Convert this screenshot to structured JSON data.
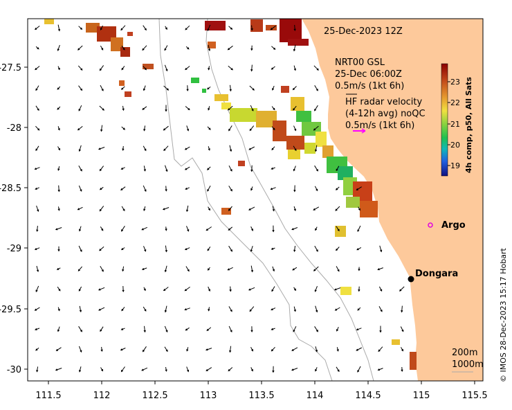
{
  "title_date": "25-Dec-2023 12Z",
  "legend_nrt": {
    "line1": "NRT00 GSL",
    "line2": "25-Dec 06:00Z",
    "line3": "0.5m/s (1kt 6h)"
  },
  "legend_hf": {
    "line1": "HF radar velocity",
    "line2": "(4-12h avg) noQC",
    "line3": "0.5m/s (1kt 6h)"
  },
  "colorbar": {
    "title": "4h comp, p50, All Sats",
    "ticks": [
      "23",
      "22",
      "21",
      "20",
      "19"
    ],
    "colors": [
      "#8b0000",
      "#c24a1a",
      "#e69a2e",
      "#f0e040",
      "#7fd040",
      "#20c050",
      "#10b8b8",
      "#2060e0",
      "#101080"
    ]
  },
  "x_ticks": [
    "111.5",
    "112",
    "112.5",
    "113",
    "113.5",
    "114",
    "114.5",
    "115",
    "115.5"
  ],
  "y_ticks": [
    "-27.5",
    "-28",
    "-28.5",
    "-29",
    "-29.5",
    "-30"
  ],
  "places": {
    "argo": "Argo",
    "dongara": "Dongara"
  },
  "contour_legend": {
    "c200": "200m",
    "c1000": "1000m"
  },
  "credit": "© IMOS 28-Dec-2023 15:17 Hobart",
  "colors": {
    "land": "#fdc99b",
    "argo_marker": "#e000e0",
    "hf_arrow": "#ff00ff",
    "contour": "#aaaaaa"
  }
}
